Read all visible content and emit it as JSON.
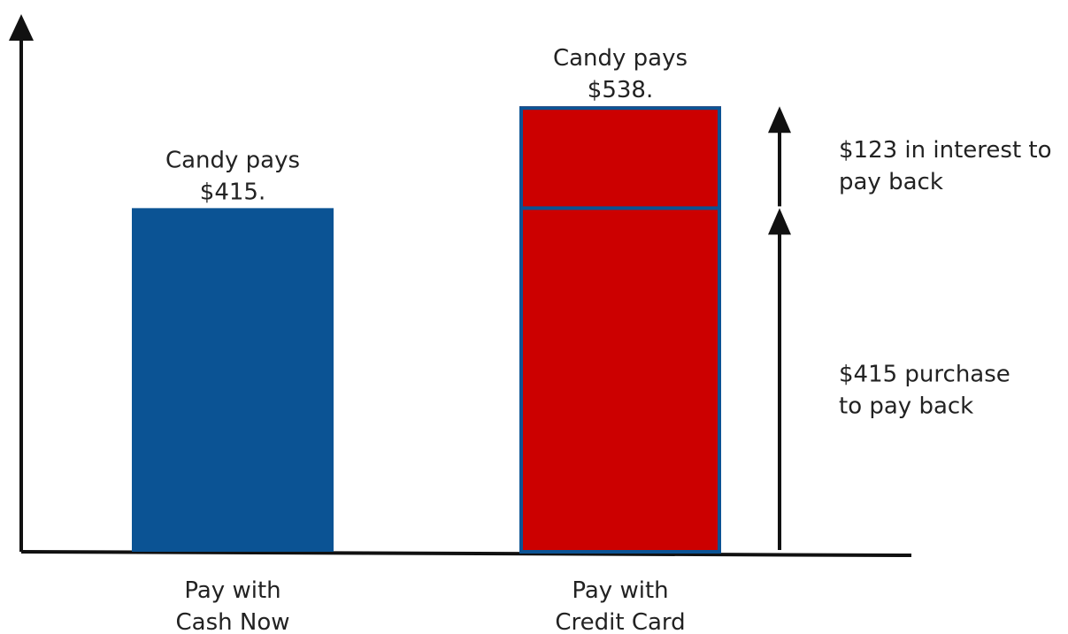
{
  "chart_data": {
    "type": "bar",
    "categories": [
      "Pay with Cash Now",
      "Pay with Credit Card"
    ],
    "category_label_lines": [
      [
        "Pay with",
        "Cash Now"
      ],
      [
        "Pay with",
        "Credit Card"
      ]
    ],
    "bars": [
      {
        "category": "Pay with Cash Now",
        "segments": [
          {
            "value": 415,
            "color": "#0b5394"
          }
        ],
        "total": 415,
        "top_label_lines": [
          "Candy pays",
          "$415."
        ]
      },
      {
        "category": "Pay with Credit Card",
        "segments": [
          {
            "value": 415,
            "color": "#cc0000"
          },
          {
            "value": 123,
            "color": "#cc0000"
          }
        ],
        "outline_color": "#0b5394",
        "total": 538,
        "top_label_lines": [
          "Candy pays",
          "$538."
        ]
      }
    ],
    "annotations": [
      {
        "segment_value": 123,
        "lines": [
          "$123 in interest to",
          "pay back"
        ]
      },
      {
        "segment_value": 415,
        "lines": [
          "$415 purchase",
          "to pay back"
        ]
      }
    ],
    "title": "",
    "xlabel": "",
    "ylabel": "",
    "ylim": [
      0,
      645
    ],
    "y_ticks_shown": false,
    "grid": false,
    "legend": "none",
    "colors": {
      "cash_bar": "#0b5394",
      "credit_bar": "#cc0000",
      "credit_outline": "#0b5394",
      "axis": "#111111",
      "text": "#222222"
    }
  }
}
